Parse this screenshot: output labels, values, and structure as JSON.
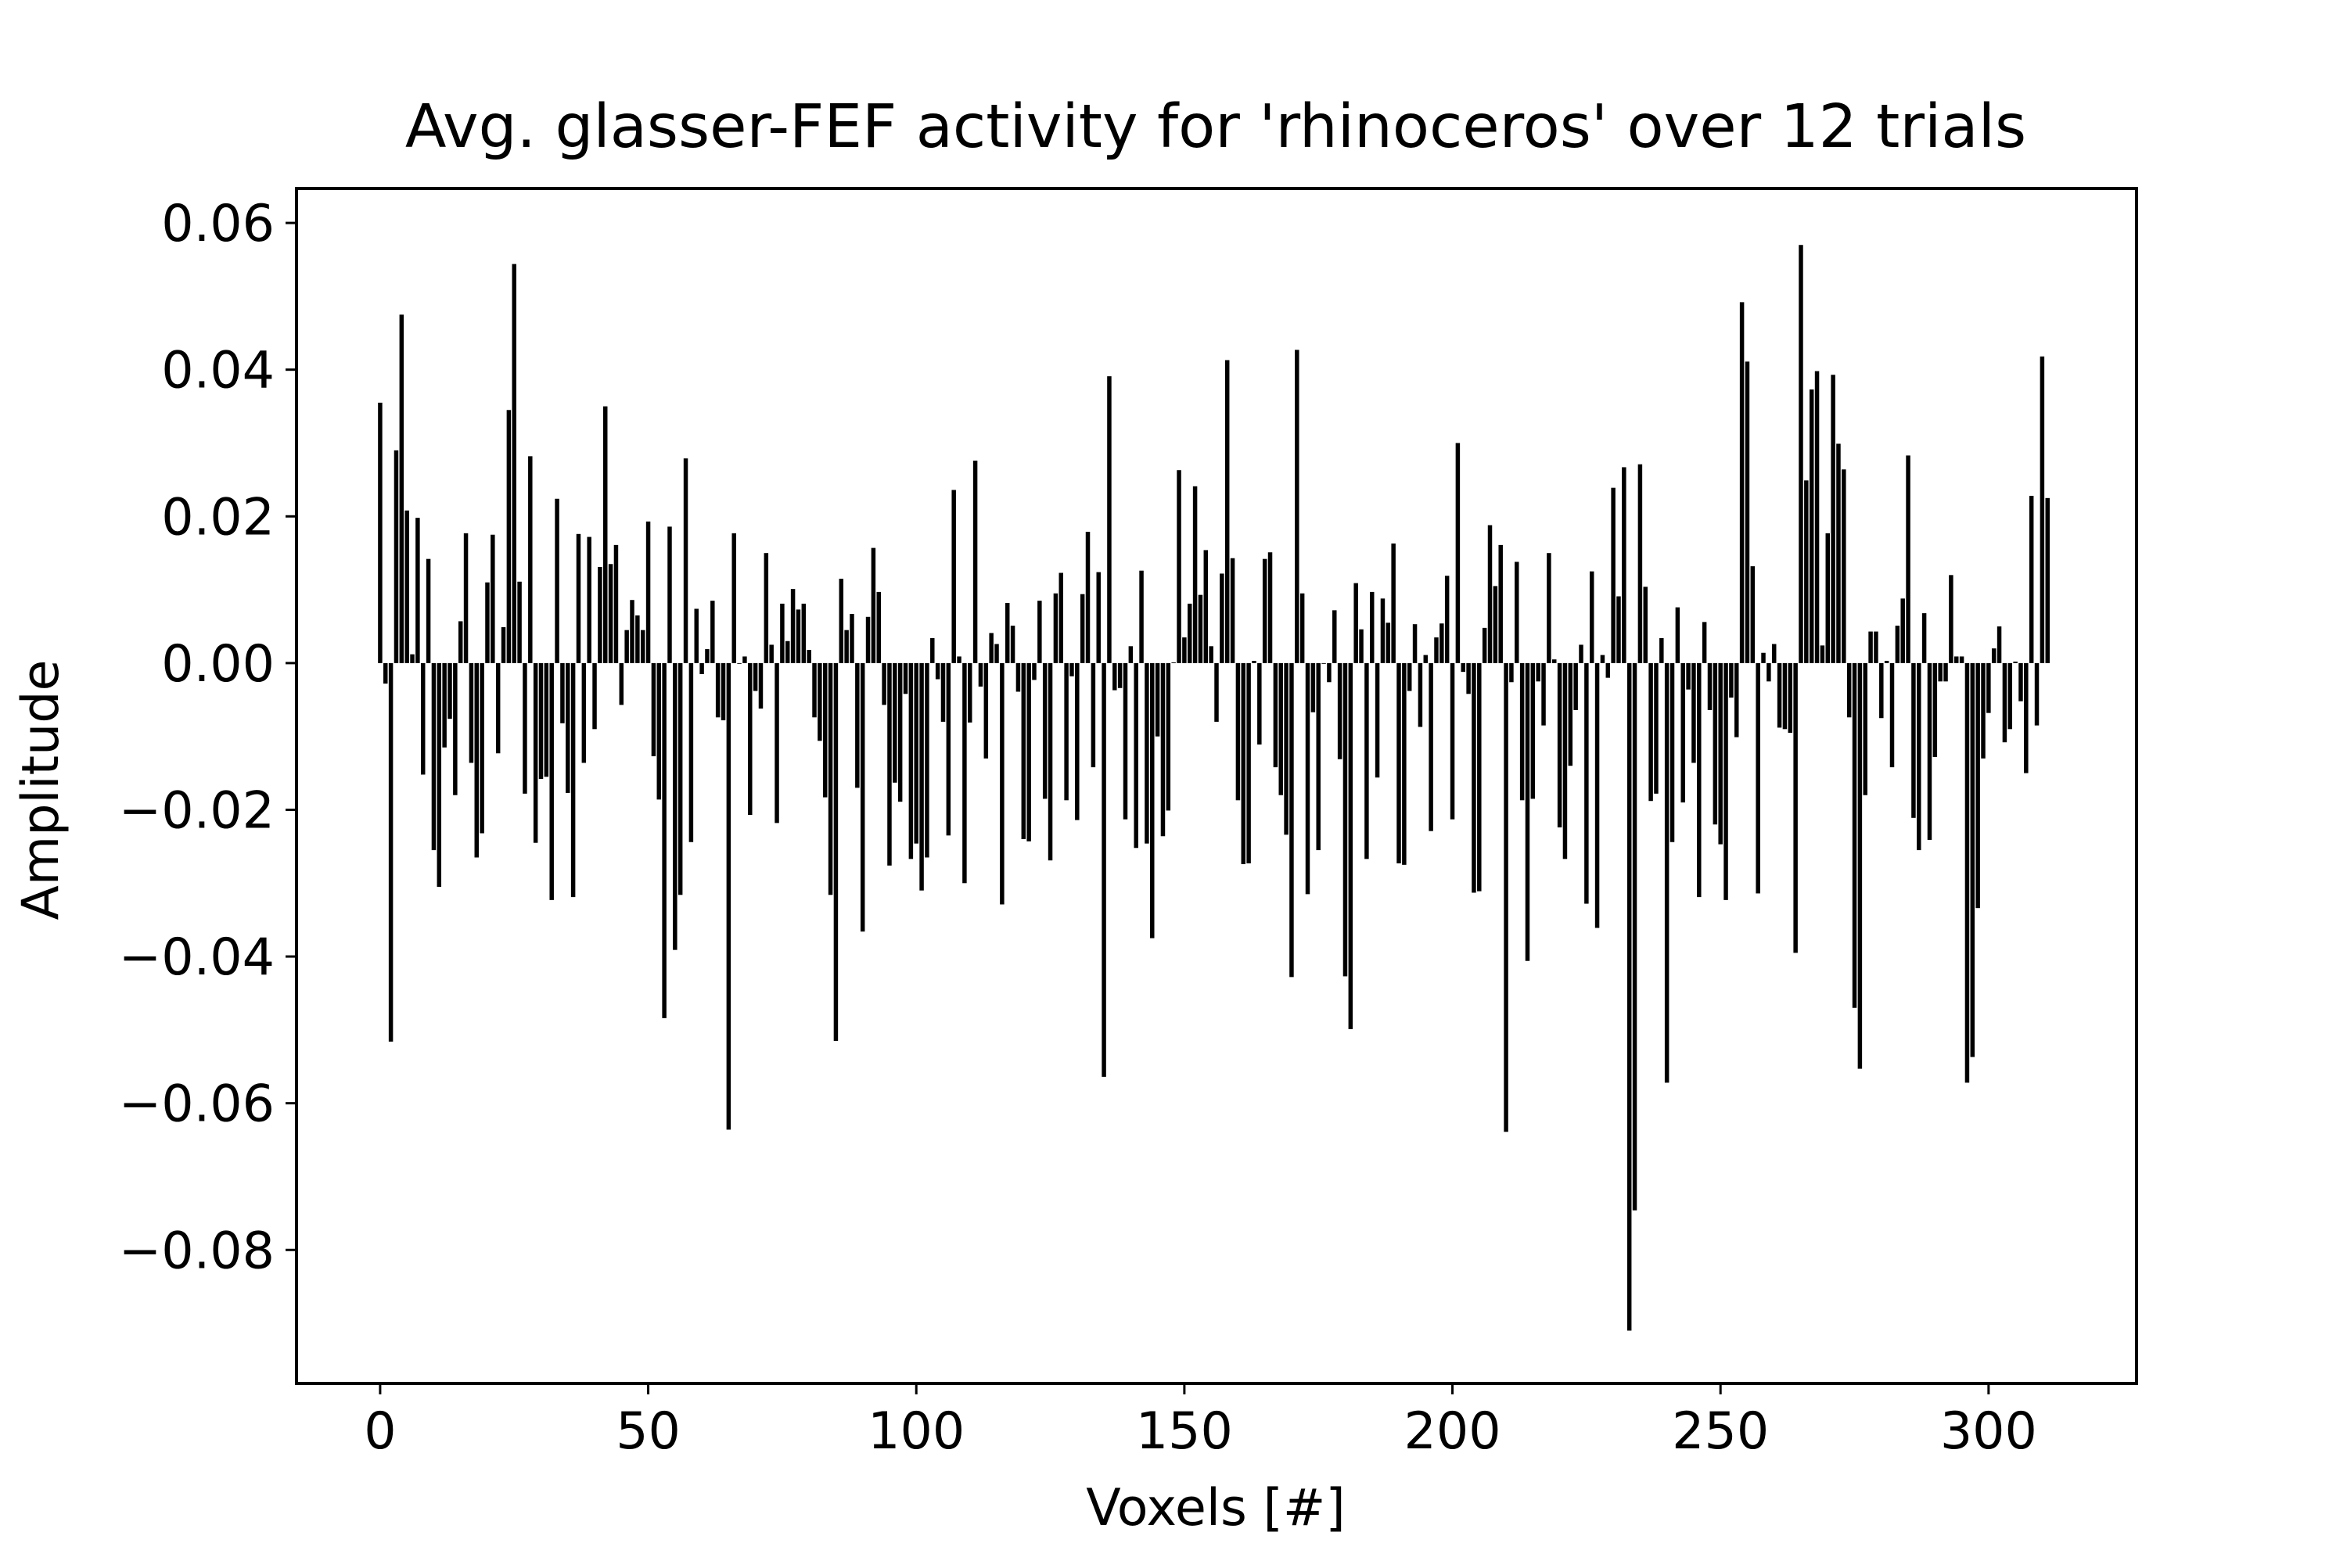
{
  "chart_data": {
    "type": "bar",
    "title": "Avg. glasser-FEF activity for 'rhinoceros' over 12 trials",
    "xlabel": "Voxels [#]",
    "ylabel": "Amplitude",
    "xlim": [
      -15.6,
      327.6
    ],
    "ylim": [
      -0.0982,
      0.0647
    ],
    "xticks": [
      0,
      50,
      100,
      150,
      200,
      250,
      300
    ],
    "xtick_labels": [
      "0",
      "50",
      "100",
      "150",
      "200",
      "250",
      "300"
    ],
    "yticks": [
      0.06,
      0.04,
      0.02,
      0.0,
      -0.02,
      -0.04,
      -0.06,
      -0.08
    ],
    "ytick_labels": [
      "0.06",
      "0.04",
      "0.02",
      "0.00",
      "−0.02",
      "−0.04",
      "−0.06",
      "−0.08"
    ],
    "grid": false,
    "legend": "none",
    "bar_color": "#000000",
    "x_start": 0,
    "values": [
      0.0355,
      -0.0028,
      -0.0516,
      0.029,
      0.0475,
      0.0208,
      0.0012,
      0.0198,
      -0.0152,
      0.0142,
      -0.0255,
      -0.0305,
      -0.0115,
      -0.0076,
      -0.018,
      0.0057,
      0.0177,
      -0.0136,
      -0.0265,
      -0.0232,
      0.011,
      0.0175,
      -0.0123,
      0.0049,
      0.0345,
      0.0544,
      0.0111,
      -0.0178,
      0.0282,
      -0.0245,
      -0.0158,
      -0.0155,
      -0.0323,
      0.0224,
      -0.0082,
      -0.0177,
      -0.0319,
      0.0176,
      -0.0136,
      0.0172,
      -0.009,
      0.0131,
      0.035,
      0.0135,
      0.0161,
      -0.0057,
      0.0045,
      0.0086,
      0.0065,
      0.0045,
      0.0193,
      -0.0127,
      -0.0186,
      -0.0484,
      0.0186,
      -0.0391,
      -0.0316,
      0.0279,
      -0.0244,
      0.0074,
      -0.0015,
      0.0019,
      0.0085,
      -0.0074,
      -0.0078,
      -0.0636,
      0.0177,
      -0.0001,
      0.0009,
      -0.0207,
      -0.0038,
      -0.0062,
      0.015,
      0.0025,
      -0.0218,
      0.0081,
      0.003,
      0.0101,
      0.0073,
      0.0081,
      0.0018,
      -0.0074,
      -0.0106,
      -0.0183,
      -0.0316,
      -0.0515,
      0.0115,
      0.0045,
      0.0067,
      -0.017,
      -0.0366,
      0.0063,
      0.0157,
      0.0097,
      -0.0057,
      -0.0276,
      -0.0163,
      -0.0189,
      -0.0042,
      -0.0267,
      -0.0246,
      -0.031,
      -0.0265,
      0.0034,
      -0.0022,
      -0.008,
      -0.0235,
      0.0236,
      0.0009,
      -0.03,
      -0.0081,
      0.0276,
      -0.0032,
      -0.013,
      0.0041,
      0.0026,
      -0.0329,
      0.0082,
      0.0051,
      -0.0039,
      -0.024,
      -0.0243,
      -0.0023,
      0.0085,
      -0.0185,
      -0.0269,
      0.0095,
      0.0123,
      -0.0187,
      -0.0018,
      -0.0214,
      0.0094,
      0.0179,
      -0.0142,
      0.0124,
      -0.0564,
      0.0391,
      -0.0037,
      -0.0034,
      -0.0213,
      0.0023,
      -0.0252,
      0.0126,
      -0.0246,
      -0.0375,
      -0.01,
      -0.0236,
      -0.0201,
      0.0001,
      0.0263,
      0.0035,
      0.0081,
      0.0241,
      0.0093,
      0.0154,
      0.0023,
      -0.008,
      0.0122,
      0.0413,
      0.0143,
      -0.0187,
      -0.0274,
      -0.0273,
      0.0003,
      -0.0111,
      0.0142,
      0.0151,
      -0.0142,
      -0.018,
      -0.0234,
      -0.0428,
      0.0427,
      0.0095,
      -0.0315,
      -0.0067,
      -0.0255,
      -0.0001,
      -0.0026,
      0.0072,
      -0.0131,
      -0.0427,
      -0.0499,
      0.0109,
      0.0046,
      -0.0267,
      0.0097,
      -0.0156,
      0.0088,
      0.0055,
      0.0163,
      -0.0273,
      -0.0275,
      -0.0038,
      0.0053,
      -0.0087,
      0.0011,
      -0.0229,
      0.0035,
      0.0054,
      0.0119,
      -0.0213,
      0.03,
      -0.0012,
      -0.0042,
      -0.0313,
      -0.0311,
      0.0048,
      0.0188,
      0.0105,
      0.0161,
      -0.0639,
      -0.0026,
      0.0138,
      -0.0187,
      -0.0406,
      -0.0185,
      -0.0025,
      -0.0085,
      0.015,
      0.0005,
      -0.0224,
      -0.0267,
      -0.014,
      -0.0064,
      0.0025,
      -0.0328,
      0.0125,
      -0.0361,
      0.0011,
      -0.002,
      0.0239,
      0.0091,
      0.0267,
      -0.091,
      -0.0746,
      0.0271,
      0.0104,
      -0.0188,
      -0.0178,
      0.0034,
      -0.0572,
      -0.0244,
      0.0076,
      -0.019,
      -0.0036,
      -0.0136,
      -0.0319,
      0.0056,
      -0.0064,
      -0.022,
      -0.0247,
      -0.0323,
      -0.0047,
      -0.0101,
      0.0492,
      0.0411,
      0.0132,
      -0.0314,
      0.0014,
      -0.0025,
      0.0026,
      -0.0088,
      -0.009,
      -0.0095,
      -0.0395,
      0.057,
      0.0249,
      0.0373,
      0.0398,
      0.0024,
      0.0177,
      0.0393,
      0.0299,
      0.0264,
      -0.0074,
      -0.047,
      -0.0553,
      -0.018,
      0.0043,
      0.0043,
      -0.0075,
      0.0003,
      -0.0142,
      0.0051,
      0.0088,
      0.0283,
      -0.0211,
      -0.0255,
      0.0068,
      -0.0241,
      -0.0128,
      -0.0025,
      -0.0025,
      0.012,
      0.0009,
      0.0009,
      -0.0572,
      -0.0537,
      -0.0334,
      -0.013,
      -0.0068,
      0.002,
      0.005,
      -0.0108,
      -0.009,
      0.0002,
      -0.0052,
      -0.015,
      0.0228,
      -0.0085,
      0.0418,
      0.0225
    ]
  }
}
